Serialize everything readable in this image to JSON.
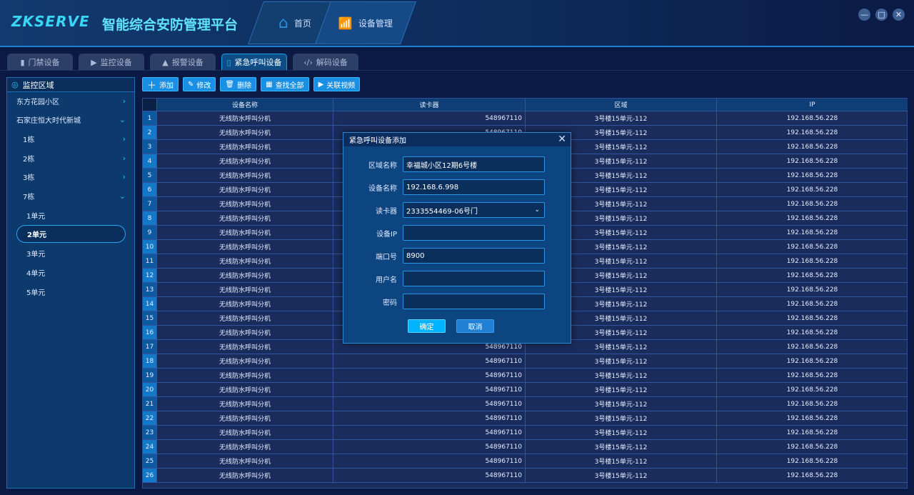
{
  "header": {
    "logo": "ZKSERVE",
    "title": "智能综合安防管理平台",
    "nav": [
      {
        "label": "首页",
        "icon": "home-icon"
      },
      {
        "label": "设备管理",
        "icon": "router-icon"
      }
    ],
    "window": {
      "minimize": "—",
      "maximize": "□",
      "close": "✕"
    }
  },
  "tabs": [
    {
      "label": "门禁设备",
      "icon": "door-icon"
    },
    {
      "label": "监控设备",
      "icon": "camera-icon"
    },
    {
      "label": "报警设备",
      "icon": "alarm-icon"
    },
    {
      "label": "紧急呼叫设备",
      "icon": "intercom-icon",
      "active": true
    },
    {
      "label": "解码设备",
      "icon": "code-icon"
    }
  ],
  "sidebar": {
    "title": "监控区域",
    "items": [
      {
        "label": "东方花园小区",
        "level": 0,
        "chevron": "›"
      },
      {
        "label": "石家庄恒大时代新城",
        "level": 0,
        "chevron": "⌄"
      },
      {
        "label": "1栋",
        "level": 1,
        "chevron": "›"
      },
      {
        "label": "2栋",
        "level": 1,
        "chevron": "›"
      },
      {
        "label": "3栋",
        "level": 1,
        "chevron": "›"
      },
      {
        "label": "7栋",
        "level": 1,
        "chevron": "⌄"
      },
      {
        "label": "1单元",
        "level": 2
      },
      {
        "label": "2单元",
        "level": 2,
        "selected": true
      },
      {
        "label": "3单元",
        "level": 2
      },
      {
        "label": "4单元",
        "level": 2
      },
      {
        "label": "5单元",
        "level": 2
      }
    ]
  },
  "toolbar": {
    "add": "添加",
    "edit": "修改",
    "delete": "删除",
    "find_all": "查找全部",
    "link_video": "关联视频"
  },
  "table": {
    "columns": [
      "设备名称",
      "读卡器",
      "区域",
      "IP"
    ],
    "rows": [
      [
        "1",
        "无线防水呼叫分机",
        "548967110",
        "3号楼15单元-112",
        "192.168.56.228"
      ],
      [
        "2",
        "无线防水呼叫分机",
        "548967110",
        "3号楼15单元-112",
        "192.168.56.228"
      ],
      [
        "3",
        "无线防水呼叫分机",
        "548967110",
        "3号楼15单元-112",
        "192.168.56.228"
      ],
      [
        "4",
        "无线防水呼叫分机",
        "548967110",
        "3号楼15单元-112",
        "192.168.56.228"
      ],
      [
        "5",
        "无线防水呼叫分机",
        "548967110",
        "3号楼15单元-112",
        "192.168.56.228"
      ],
      [
        "6",
        "无线防水呼叫分机",
        "548967110",
        "3号楼15单元-112",
        "192.168.56.228"
      ],
      [
        "7",
        "无线防水呼叫分机",
        "548967110",
        "3号楼15单元-112",
        "192.168.56.228"
      ],
      [
        "8",
        "无线防水呼叫分机",
        "548967110",
        "3号楼15单元-112",
        "192.168.56.228"
      ],
      [
        "9",
        "无线防水呼叫分机",
        "548967110",
        "3号楼15单元-112",
        "192.168.56.228"
      ],
      [
        "10",
        "无线防水呼叫分机",
        "548967110",
        "3号楼15单元-112",
        "192.168.56.228"
      ],
      [
        "11",
        "无线防水呼叫分机",
        "548967110",
        "3号楼15单元-112",
        "192.168.56.228"
      ],
      [
        "12",
        "无线防水呼叫分机",
        "548967110",
        "3号楼15单元-112",
        "192.168.56.228"
      ],
      [
        "13",
        "无线防水呼叫分机",
        "548967110",
        "3号楼15单元-112",
        "192.168.56.228"
      ],
      [
        "14",
        "无线防水呼叫分机",
        "548967110",
        "3号楼15单元-112",
        "192.168.56.228"
      ],
      [
        "15",
        "无线防水呼叫分机",
        "548967110",
        "3号楼15单元-112",
        "192.168.56.228"
      ],
      [
        "16",
        "无线防水呼叫分机",
        "548967110",
        "3号楼15单元-112",
        "192.168.56.228"
      ],
      [
        "17",
        "无线防水呼叫分机",
        "548967110",
        "3号楼15单元-112",
        "192.168.56.228"
      ],
      [
        "18",
        "无线防水呼叫分机",
        "548967110",
        "3号楼15单元-112",
        "192.168.56.228"
      ],
      [
        "19",
        "无线防水呼叫分机",
        "548967110",
        "3号楼15单元-112",
        "192.168.56.228"
      ],
      [
        "20",
        "无线防水呼叫分机",
        "548967110",
        "3号楼15单元-112",
        "192.168.56.228"
      ],
      [
        "21",
        "无线防水呼叫分机",
        "548967110",
        "3号楼15单元-112",
        "192.168.56.228"
      ],
      [
        "22",
        "无线防水呼叫分机",
        "548967110",
        "3号楼15单元-112",
        "192.168.56.228"
      ],
      [
        "23",
        "无线防水呼叫分机",
        "548967110",
        "3号楼15单元-112",
        "192.168.56.228"
      ],
      [
        "24",
        "无线防水呼叫分机",
        "548967110",
        "3号楼15单元-112",
        "192.168.56.228"
      ],
      [
        "25",
        "无线防水呼叫分机",
        "548967110",
        "3号楼15单元-112",
        "192.168.56.228"
      ],
      [
        "26",
        "无线防水呼叫分机",
        "548967110",
        "3号楼15单元-112",
        "192.168.56.228"
      ]
    ]
  },
  "dialog": {
    "title": "紧急呼叫设备添加",
    "close": "✕",
    "fields": [
      {
        "label": "区域名称",
        "value": "幸福城小区12期6号楼"
      },
      {
        "label": "设备名称",
        "value": "192.168.6.998"
      },
      {
        "label": "读卡器",
        "value": "2333554469-06号门",
        "dropdown": true
      },
      {
        "label": "设备IP",
        "value": ""
      },
      {
        "label": "端口号",
        "value": "8900"
      },
      {
        "label": "用户名",
        "value": ""
      },
      {
        "label": "密码",
        "value": ""
      }
    ],
    "confirm": "确定",
    "cancel": "取消"
  },
  "colors": {
    "accent": "#1990e3",
    "confirm": "#00b4ff",
    "cancel": "#1f80d6"
  }
}
